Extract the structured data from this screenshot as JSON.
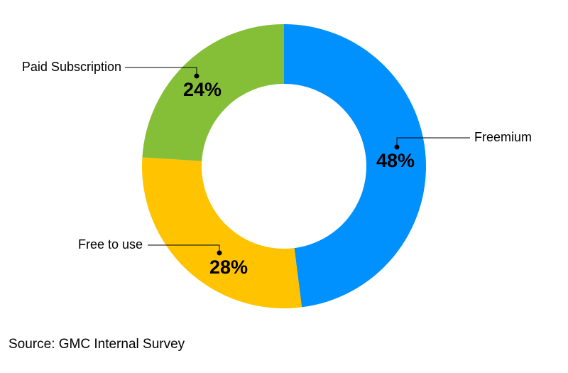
{
  "chart_data": {
    "type": "pie",
    "variant": "donut",
    "categories": [
      "Freemium",
      "Free to use",
      "Paid Subscription"
    ],
    "values": [
      48,
      28,
      24
    ],
    "value_labels": [
      "48%",
      "28%",
      "24%"
    ],
    "colors": [
      "#0091ff",
      "#ffc300",
      "#85bf38"
    ],
    "title": "",
    "legend": "none"
  },
  "source_text": "Source: GMC Internal Survey"
}
